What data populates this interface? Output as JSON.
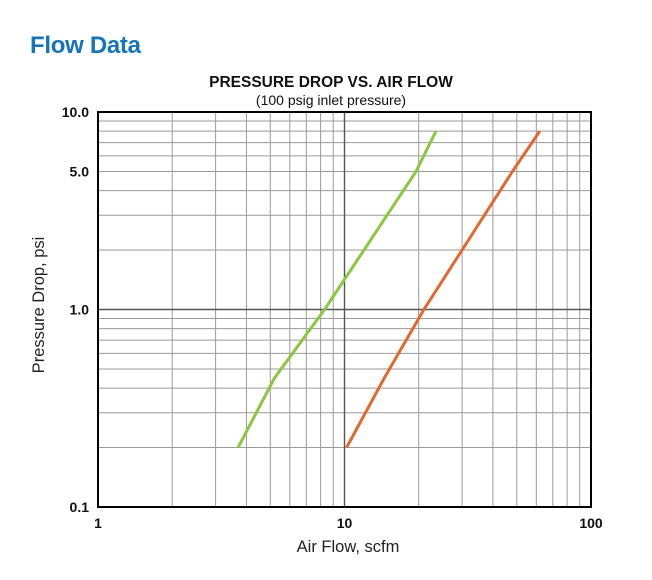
{
  "header": {
    "section_title": "Flow Data"
  },
  "chart_data": {
    "type": "line",
    "title": "PRESSURE DROP VS. AIR FLOW",
    "subtitle": "(100 psig inlet pressure)",
    "xlabel": "Air Flow, scfm",
    "ylabel": "Pressure Drop, psi",
    "x_scale": "log",
    "y_scale": "log",
    "xlim": [
      1,
      100
    ],
    "ylim": [
      0.1,
      10
    ],
    "x_ticks": [
      {
        "value": 1,
        "label": "1"
      },
      {
        "value": 10,
        "label": "10"
      },
      {
        "value": 100,
        "label": "100"
      }
    ],
    "y_ticks": [
      {
        "value": 0.1,
        "label": "0.1"
      },
      {
        "value": 1,
        "label": "1.0"
      },
      {
        "value": 5,
        "label": "5.0"
      },
      {
        "value": 10,
        "label": "10.0"
      }
    ],
    "grid": true,
    "series": [
      {
        "color": "#8dc63f",
        "points": [
          [
            3.7,
            0.2
          ],
          [
            5.2,
            0.45
          ],
          [
            8.3,
            1.0
          ],
          [
            12,
            2.0
          ],
          [
            19.5,
            5.0
          ],
          [
            23.5,
            8.0
          ]
        ]
      },
      {
        "color": "#e0692e",
        "points": [
          [
            10.2,
            0.2
          ],
          [
            14.5,
            0.45
          ],
          [
            21,
            1.0
          ],
          [
            30,
            2.0
          ],
          [
            48,
            5.0
          ],
          [
            62,
            8.0
          ]
        ]
      }
    ]
  }
}
